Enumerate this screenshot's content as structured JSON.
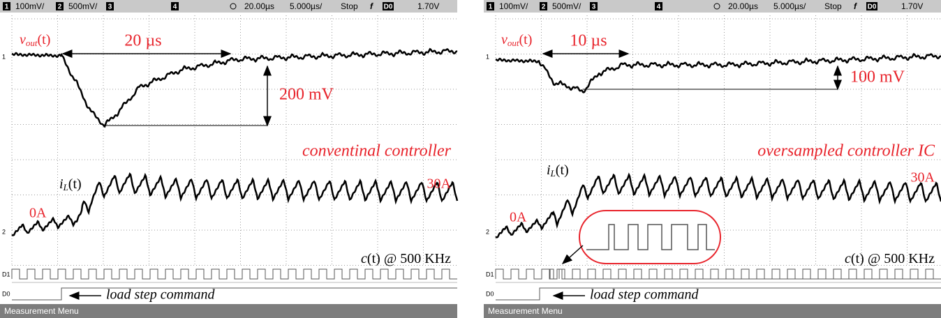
{
  "panels": [
    {
      "header": {
        "ch1": "1",
        "ch1_scale": "100mV/",
        "ch2": "2",
        "ch2_scale": "500mV/",
        "ch3": "3",
        "ch4": "4",
        "time_pos": "20.00µs",
        "time_scale": "5.000µs/",
        "status": "Stop",
        "trigger": "f",
        "trigger_src": "D0",
        "trigger_level": "1.70V"
      },
      "markers": {
        "ch1": "1",
        "ch2": "2",
        "d1": "D1",
        "d0": "D0"
      },
      "annotations": {
        "vout": {
          "symbol": "v",
          "subscript": "out",
          "arg": "(t)"
        },
        "time_delta": "20 µs",
        "voltage_delta": "200 mV",
        "controller": "conventinal controller",
        "il": {
          "symbol": "i",
          "subscript": "L",
          "arg": "(t)"
        },
        "i_high": "30A",
        "i_low": "0A",
        "clock": {
          "symbol": "c",
          "arg": "(t)",
          "rest": " @ 500 KHz"
        },
        "load_step": "load step command"
      },
      "footer": "Measurement Menu"
    },
    {
      "header": {
        "ch1": "1",
        "ch1_scale": "100mV/",
        "ch2": "2",
        "ch2_scale": "500mV/",
        "ch3": "3",
        "ch4": "4",
        "time_pos": "20.00µs",
        "time_scale": "5.000µs/",
        "status": "Stop",
        "trigger": "f",
        "trigger_src": "D0",
        "trigger_level": "1.70V"
      },
      "markers": {
        "ch1": "1",
        "ch2": "2",
        "d1": "D1",
        "d0": "D0"
      },
      "annotations": {
        "vout": {
          "symbol": "v",
          "subscript": "out",
          "arg": "(t)"
        },
        "time_delta": "10 µs",
        "voltage_delta": "100 mV",
        "controller": "oversampled controller IC",
        "il": {
          "symbol": "i",
          "subscript": "L",
          "arg": "(t)"
        },
        "i_high": "30A",
        "i_low": "0A",
        "clock": {
          "symbol": "c",
          "arg": "(t)",
          "rest": " @ 500 KHz"
        },
        "load_step": "load step command"
      },
      "footer": "Measurement Menu"
    }
  ]
}
